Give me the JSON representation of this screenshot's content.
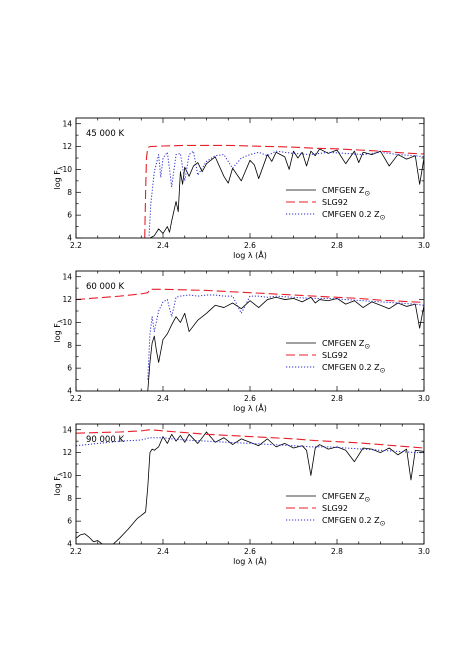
{
  "chart_data": [
    {
      "type": "line",
      "panel_label": "45 000 K",
      "xlabel": "log  λ (Å)",
      "ylabel": "log F",
      "ylabel_sub": "λ",
      "xlim": [
        2.2,
        3.0
      ],
      "ylim": [
        4,
        14.5
      ],
      "xticks": [
        2.2,
        2.4,
        2.6,
        2.8,
        3.0
      ],
      "xtick_labels": [
        "2.2",
        "2.4",
        "2.6",
        "2.8",
        "3.0"
      ],
      "yticks": [
        4,
        6,
        8,
        10,
        12,
        14
      ],
      "ytick_labels": [
        "4",
        "6",
        "8",
        "10",
        "12",
        "14"
      ],
      "legend_position": "bottom-right",
      "series": [
        {
          "name": "CMFGEN Z",
          "name_sub": "⊙",
          "color": "#000000",
          "dash": "solid",
          "x": [
            2.37,
            2.38,
            2.39,
            2.4,
            2.41,
            2.415,
            2.42,
            2.43,
            2.435,
            2.44,
            2.445,
            2.45,
            2.46,
            2.47,
            2.48,
            2.49,
            2.5,
            2.52,
            2.54,
            2.55,
            2.56,
            2.58,
            2.6,
            2.61,
            2.62,
            2.64,
            2.65,
            2.66,
            2.68,
            2.69,
            2.7,
            2.71,
            2.72,
            2.73,
            2.74,
            2.75,
            2.76,
            2.78,
            2.8,
            2.82,
            2.84,
            2.85,
            2.86,
            2.88,
            2.9,
            2.92,
            2.94,
            2.96,
            2.98,
            2.99,
            3.0
          ],
          "y": [
            4.0,
            4.2,
            4.8,
            4.4,
            5.0,
            4.5,
            5.5,
            7.2,
            6.3,
            9.8,
            8.7,
            10.2,
            9.4,
            10.3,
            10.6,
            9.8,
            10.5,
            11.1,
            9.4,
            8.8,
            10.1,
            9.0,
            10.8,
            10.4,
            9.2,
            11.3,
            10.7,
            11.5,
            11.1,
            10.0,
            11.6,
            11.0,
            11.5,
            10.3,
            11.6,
            11.2,
            11.8,
            11.4,
            11.7,
            10.5,
            11.6,
            10.6,
            11.5,
            11.3,
            11.6,
            10.3,
            11.3,
            10.9,
            11.2,
            8.7,
            11.0
          ]
        },
        {
          "name": "SLG92",
          "color": "#e8202a",
          "dash": "long-dash",
          "x": [
            2.358,
            2.36,
            2.362,
            2.365,
            2.37,
            2.4,
            2.45,
            2.5,
            2.55,
            2.6,
            2.65,
            2.7,
            2.75,
            2.8,
            2.85,
            2.9,
            2.95,
            3.0
          ],
          "y": [
            4.0,
            8.0,
            11.0,
            11.9,
            12.0,
            12.05,
            12.1,
            12.1,
            12.1,
            12.05,
            12.0,
            11.95,
            11.85,
            11.8,
            11.7,
            11.6,
            11.45,
            11.35
          ]
        },
        {
          "name": "CMFGEN 0.2 Z",
          "name_sub": "⊙",
          "color": "#2a2ad0",
          "dash": "dotted",
          "x": [
            2.368,
            2.372,
            2.38,
            2.39,
            2.395,
            2.4,
            2.41,
            2.42,
            2.43,
            2.44,
            2.45,
            2.46,
            2.47,
            2.48,
            2.5,
            2.52,
            2.54,
            2.56,
            2.58,
            2.6,
            2.62,
            2.64,
            2.66,
            2.7,
            2.74,
            2.78,
            2.82,
            2.86,
            2.9,
            2.94,
            2.98,
            3.0
          ],
          "y": [
            4.2,
            7.0,
            9.8,
            11.3,
            9.3,
            11.0,
            11.5,
            8.5,
            11.3,
            11.4,
            9.0,
            11.3,
            11.6,
            9.5,
            10.7,
            11.2,
            11.3,
            10.1,
            11.0,
            11.3,
            11.5,
            11.2,
            11.6,
            11.4,
            11.3,
            11.5,
            11.4,
            11.3,
            11.5,
            11.3,
            11.2,
            11.1
          ]
        }
      ]
    },
    {
      "type": "line",
      "panel_label": "60 000 K",
      "xlabel": "log  λ (Å)",
      "ylabel": "log F",
      "ylabel_sub": "λ",
      "xlim": [
        2.2,
        3.0
      ],
      "ylim": [
        4,
        14.5
      ],
      "xticks": [
        2.2,
        2.4,
        2.6,
        2.8,
        3.0
      ],
      "xtick_labels": [
        "2.2",
        "2.4",
        "2.6",
        "2.8",
        "3.0"
      ],
      "yticks": [
        4,
        6,
        8,
        10,
        12,
        14
      ],
      "ytick_labels": [
        "4",
        "6",
        "8",
        "10",
        "12",
        "14"
      ],
      "legend_position": "bottom-right",
      "series": [
        {
          "name": "CMFGEN Z",
          "name_sub": "⊙",
          "color": "#000000",
          "dash": "solid",
          "x": [
            2.365,
            2.37,
            2.375,
            2.38,
            2.385,
            2.39,
            2.4,
            2.41,
            2.42,
            2.43,
            2.44,
            2.45,
            2.46,
            2.48,
            2.5,
            2.52,
            2.54,
            2.56,
            2.58,
            2.6,
            2.62,
            2.64,
            2.66,
            2.68,
            2.7,
            2.72,
            2.74,
            2.75,
            2.76,
            2.78,
            2.8,
            2.82,
            2.84,
            2.86,
            2.88,
            2.9,
            2.92,
            2.94,
            2.96,
            2.98,
            2.99,
            3.0
          ],
          "y": [
            4.0,
            6.5,
            8.2,
            8.8,
            7.5,
            6.5,
            8.5,
            9.0,
            9.8,
            10.5,
            10.0,
            10.8,
            9.2,
            10.2,
            10.8,
            11.5,
            11.3,
            11.7,
            11.2,
            11.9,
            11.3,
            12.0,
            12.2,
            12.0,
            12.1,
            11.8,
            12.2,
            11.7,
            12.0,
            11.9,
            12.1,
            11.6,
            11.9,
            11.3,
            11.8,
            11.5,
            11.2,
            11.7,
            11.4,
            11.6,
            9.5,
            11.5
          ]
        },
        {
          "name": "SLG92",
          "color": "#e8202a",
          "dash": "long-dash",
          "x": [
            2.2,
            2.25,
            2.3,
            2.35,
            2.365,
            2.37,
            2.4,
            2.45,
            2.5,
            2.55,
            2.6,
            2.65,
            2.7,
            2.75,
            2.8,
            2.85,
            2.9,
            2.95,
            3.0
          ],
          "y": [
            12.0,
            12.15,
            12.3,
            12.5,
            12.6,
            12.9,
            12.9,
            12.85,
            12.8,
            12.7,
            12.6,
            12.5,
            12.4,
            12.3,
            12.2,
            12.1,
            11.95,
            11.85,
            11.75
          ]
        },
        {
          "name": "CMFGEN 0.2 Z",
          "name_sub": "⊙",
          "color": "#2a2ad0",
          "dash": "dotted",
          "x": [
            2.365,
            2.37,
            2.375,
            2.38,
            2.39,
            2.4,
            2.41,
            2.42,
            2.43,
            2.44,
            2.46,
            2.48,
            2.5,
            2.52,
            2.54,
            2.56,
            2.58,
            2.6,
            2.62,
            2.64,
            2.66,
            2.7,
            2.74,
            2.78,
            2.82,
            2.86,
            2.9,
            2.94,
            2.98,
            3.0
          ],
          "y": [
            5.0,
            9.0,
            10.5,
            9.2,
            11.0,
            11.8,
            12.0,
            10.5,
            12.2,
            12.3,
            12.4,
            12.3,
            12.4,
            12.4,
            12.3,
            12.3,
            10.8,
            12.3,
            12.3,
            12.2,
            12.3,
            12.2,
            12.1,
            12.1,
            12.0,
            11.9,
            11.8,
            11.7,
            11.6,
            11.5
          ]
        }
      ]
    },
    {
      "type": "line",
      "panel_label": "90 000 K",
      "xlabel": "log  λ (Å)",
      "ylabel": "log F",
      "ylabel_sub": "λ",
      "xlim": [
        2.2,
        3.0
      ],
      "ylim": [
        4,
        14.5
      ],
      "xticks": [
        2.2,
        2.4,
        2.6,
        2.8,
        3.0
      ],
      "xtick_labels": [
        "2.2",
        "2.4",
        "2.6",
        "2.8",
        "3.0"
      ],
      "yticks": [
        4,
        6,
        8,
        10,
        12,
        14
      ],
      "ytick_labels": [
        "4",
        "6",
        "8",
        "10",
        "12",
        "14"
      ],
      "legend_position": "bottom-right",
      "series": [
        {
          "name": "CMFGEN Z",
          "name_sub": "⊙",
          "color": "#000000",
          "dash": "solid",
          "x": [
            2.2,
            2.21,
            2.22,
            2.23,
            2.24,
            2.25,
            2.26,
            2.27,
            2.28,
            2.3,
            2.32,
            2.34,
            2.35,
            2.36,
            2.365,
            2.37,
            2.375,
            2.38,
            2.39,
            2.4,
            2.41,
            2.42,
            2.43,
            2.44,
            2.45,
            2.46,
            2.48,
            2.5,
            2.52,
            2.54,
            2.56,
            2.58,
            2.6,
            2.62,
            2.64,
            2.66,
            2.68,
            2.7,
            2.72,
            2.73,
            2.74,
            2.75,
            2.76,
            2.78,
            2.8,
            2.82,
            2.84,
            2.86,
            2.88,
            2.9,
            2.92,
            2.94,
            2.96,
            2.97,
            2.98,
            3.0
          ],
          "y": [
            4.5,
            4.8,
            4.9,
            4.6,
            4.2,
            4.3,
            4.0,
            3.6,
            3.8,
            4.5,
            5.3,
            6.2,
            6.5,
            6.8,
            9.0,
            12.0,
            12.3,
            12.2,
            12.5,
            13.4,
            12.8,
            13.6,
            13.0,
            13.5,
            12.9,
            13.6,
            12.8,
            13.8,
            12.9,
            13.3,
            12.7,
            13.2,
            12.9,
            12.6,
            13.2,
            12.5,
            12.8,
            12.4,
            12.6,
            12.2,
            10.0,
            12.4,
            12.7,
            12.3,
            12.5,
            12.2,
            11.2,
            12.4,
            12.3,
            12.0,
            12.4,
            11.8,
            12.3,
            9.6,
            12.2,
            12.1
          ]
        },
        {
          "name": "SLG92",
          "color": "#e8202a",
          "dash": "long-dash",
          "x": [
            2.2,
            2.25,
            2.3,
            2.35,
            2.37,
            2.4,
            2.45,
            2.5,
            2.55,
            2.6,
            2.65,
            2.7,
            2.75,
            2.8,
            2.85,
            2.9,
            2.95,
            3.0
          ],
          "y": [
            13.7,
            13.75,
            13.8,
            13.9,
            14.0,
            13.9,
            13.75,
            13.6,
            13.5,
            13.4,
            13.3,
            13.2,
            13.05,
            12.95,
            12.85,
            12.7,
            12.55,
            12.4
          ]
        },
        {
          "name": "CMFGEN 0.2 Z",
          "name_sub": "⊙",
          "color": "#2a2ad0",
          "dash": "dotted",
          "x": [
            2.2,
            2.25,
            2.3,
            2.35,
            2.37,
            2.4,
            2.42,
            2.45,
            2.5,
            2.55,
            2.6,
            2.65,
            2.7,
            2.74,
            2.78,
            2.82,
            2.86,
            2.9,
            2.94,
            2.98,
            3.0
          ],
          "y": [
            12.6,
            12.8,
            13.0,
            13.1,
            13.3,
            13.3,
            13.2,
            13.1,
            13.0,
            12.9,
            12.8,
            12.7,
            12.6,
            12.5,
            12.5,
            12.4,
            12.3,
            12.2,
            12.1,
            12.0,
            12.0
          ]
        }
      ]
    }
  ]
}
